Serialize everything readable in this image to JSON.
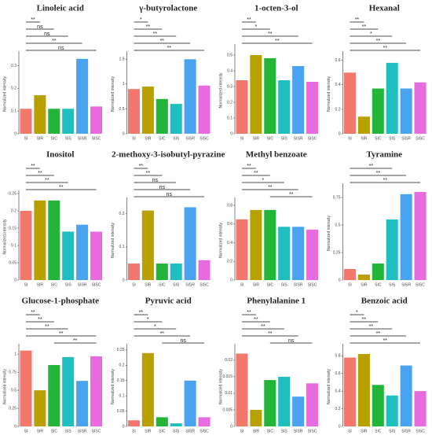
{
  "chart_data": [
    {
      "type": "bar",
      "title": "Linoleic acid",
      "y_label": "Normalized intensity",
      "categories": [
        "SI",
        "SIR",
        "SIC",
        "SIS",
        "SISR",
        "SISC"
      ],
      "values": [
        0.11,
        0.17,
        0.11,
        0.11,
        0.33,
        0.12
      ],
      "colors": [
        "#f4776e",
        "#b8a000",
        "#22b53a",
        "#1fbfbf",
        "#4aa3f0",
        "#e86ce0"
      ],
      "ylim": [
        0,
        0.35
      ],
      "yticks": [
        0,
        0.1,
        0.2,
        0.3
      ],
      "comparisons": [
        {
          "from": "SI",
          "to": "SIR",
          "label": "**"
        },
        {
          "from": "SI",
          "to": "SIC",
          "label": "ns"
        },
        {
          "from": "SI",
          "to": "SIS",
          "label": "ns"
        },
        {
          "from": "SI",
          "to": "SISR",
          "label": "**"
        },
        {
          "from": "SI",
          "to": "SISC",
          "label": "ns"
        }
      ]
    },
    {
      "type": "bar",
      "title": "γ-butyrolactone",
      "y_label": "Normalized intensity",
      "categories": [
        "SI",
        "SIR",
        "SIC",
        "SIS",
        "SISR",
        "SISC"
      ],
      "values": [
        0.9,
        0.95,
        0.7,
        0.6,
        1.5,
        0.97
      ],
      "colors": [
        "#f4776e",
        "#b8a000",
        "#22b53a",
        "#1fbfbf",
        "#4aa3f0",
        "#e86ce0"
      ],
      "ylim": [
        0,
        1.6
      ],
      "yticks": [
        0,
        0.5,
        1,
        1.5
      ],
      "comparisons": [
        {
          "from": "SI",
          "to": "SIR",
          "label": "*"
        },
        {
          "from": "SI",
          "to": "SIC",
          "label": "**"
        },
        {
          "from": "SI",
          "to": "SIS",
          "label": "**"
        },
        {
          "from": "SI",
          "to": "SISR",
          "label": "**"
        },
        {
          "from": "SI",
          "to": "SISC",
          "label": "**"
        }
      ]
    },
    {
      "type": "bar",
      "title": "1-octen-3-ol",
      "y_label": "Normalized intensity",
      "categories": [
        "SI",
        "SIR",
        "SIC",
        "SIS",
        "SISR",
        "SISC"
      ],
      "values": [
        0.34,
        0.5,
        0.48,
        0.34,
        0.43,
        0.33
      ],
      "colors": [
        "#f4776e",
        "#b8a000",
        "#22b53a",
        "#1fbfbf",
        "#4aa3f0",
        "#e86ce0"
      ],
      "ylim": [
        0,
        0.55
      ],
      "yticks": [
        0,
        0.1,
        0.2,
        0.3,
        0.4,
        0.5
      ],
      "comparisons": [
        {
          "from": "SI",
          "to": "SIR",
          "label": "**"
        },
        {
          "from": "SI",
          "to": "SIC",
          "label": "*"
        },
        {
          "from": "SI",
          "to": "SISR",
          "label": "**"
        },
        {
          "from": "SI",
          "to": "SISC",
          "label": "**"
        }
      ]
    },
    {
      "type": "bar",
      "title": "Hexanal",
      "y_label": "Normalized intensity",
      "categories": [
        "SI",
        "SIR",
        "SIC",
        "SIS",
        "SISR",
        "SISC"
      ],
      "values": [
        0.5,
        0.14,
        0.37,
        0.58,
        0.37,
        0.42
      ],
      "colors": [
        "#f4776e",
        "#b8a000",
        "#22b53a",
        "#1fbfbf",
        "#4aa3f0",
        "#e86ce0"
      ],
      "ylim": [
        0,
        0.65
      ],
      "yticks": [
        0,
        0.2,
        0.4,
        0.6
      ],
      "comparisons": [
        {
          "from": "SI",
          "to": "SIR",
          "label": "**"
        },
        {
          "from": "SI",
          "to": "SIC",
          "label": "**"
        },
        {
          "from": "SI",
          "to": "SIS",
          "label": "*"
        },
        {
          "from": "SI",
          "to": "SISR",
          "label": "**"
        },
        {
          "from": "SI",
          "to": "SISC",
          "label": "**"
        }
      ]
    },
    {
      "type": "bar",
      "title": "Inositol",
      "y_label": "Normalized intensity",
      "categories": [
        "SI",
        "SIR",
        "SIC",
        "SIS",
        "SISR",
        "SISC"
      ],
      "values": [
        0.2,
        0.23,
        0.23,
        0.14,
        0.16,
        0.14
      ],
      "colors": [
        "#f4776e",
        "#b8a000",
        "#22b53a",
        "#1fbfbf",
        "#4aa3f0",
        "#e86ce0"
      ],
      "ylim": [
        0,
        0.25
      ],
      "yticks": [
        0,
        0.05,
        0.1,
        0.15,
        0.2,
        0.25
      ],
      "comparisons": [
        {
          "from": "SI",
          "to": "SIR",
          "label": "**"
        },
        {
          "from": "SI",
          "to": "SIC",
          "label": "**"
        },
        {
          "from": "SI",
          "to": "SIS",
          "label": "**"
        },
        {
          "from": "SI",
          "to": "SISC",
          "label": "**"
        }
      ]
    },
    {
      "type": "bar",
      "title": "2-methoxy-3-isobutyl-pyrazine",
      "y_label": "Normalized intensity",
      "categories": [
        "SI",
        "SIR",
        "SIC",
        "SIS",
        "SISR",
        "SISC"
      ],
      "values": [
        0.05,
        0.21,
        0.05,
        0.05,
        0.22,
        0.06
      ],
      "colors": [
        "#f4776e",
        "#b8a000",
        "#22b53a",
        "#1fbfbf",
        "#4aa3f0",
        "#e86ce0"
      ],
      "ylim": [
        0,
        0.24
      ],
      "yticks": [
        0,
        0.1,
        0.2
      ],
      "comparisons": [
        {
          "from": "SI",
          "to": "SIR",
          "label": "**"
        },
        {
          "from": "SI",
          "to": "SIC",
          "label": "**"
        },
        {
          "from": "SI",
          "to": "SIS",
          "label": "ns"
        },
        {
          "from": "SI",
          "to": "SISR",
          "label": "ns"
        },
        {
          "from": "SI",
          "to": "SISC",
          "label": "ns"
        }
      ]
    },
    {
      "type": "bar",
      "title": "Methyl benzoate",
      "y_label": "Normalized intensity",
      "categories": [
        "SI",
        "SIR",
        "SIC",
        "SIS",
        "SISR",
        "SISC"
      ],
      "values": [
        0.65,
        0.75,
        0.75,
        0.57,
        0.57,
        0.54
      ],
      "colors": [
        "#f4776e",
        "#b8a000",
        "#22b53a",
        "#1fbfbf",
        "#4aa3f0",
        "#e86ce0"
      ],
      "ylim": [
        0,
        0.85
      ],
      "yticks": [
        0,
        0.2,
        0.4,
        0.6,
        0.8
      ],
      "comparisons": [
        {
          "from": "SI",
          "to": "SIR",
          "label": "**"
        },
        {
          "from": "SI",
          "to": "SIC",
          "label": "**"
        },
        {
          "from": "SI",
          "to": "SIS",
          "label": "*"
        },
        {
          "from": "SI",
          "to": "SISR",
          "label": "**"
        },
        {
          "from": "SIC",
          "to": "SISC",
          "label": "**"
        }
      ]
    },
    {
      "type": "bar",
      "title": "Tyramine",
      "y_label": "Normalized intensity",
      "categories": [
        "SI",
        "SIR",
        "SIC",
        "SIS",
        "SISR",
        "SISC"
      ],
      "values": [
        0.1,
        0.05,
        0.15,
        0.55,
        0.78,
        0.8
      ],
      "colors": [
        "#f4776e",
        "#b8a000",
        "#22b53a",
        "#1fbfbf",
        "#4aa3f0",
        "#e86ce0"
      ],
      "ylim": [
        0,
        0.85
      ],
      "yticks": [
        0,
        0.25,
        0.5,
        0.75
      ],
      "comparisons": [
        {
          "from": "SI",
          "to": "SIS",
          "label": "**"
        },
        {
          "from": "SI",
          "to": "SISR",
          "label": "**"
        },
        {
          "from": "SI",
          "to": "SISC",
          "label": "**"
        }
      ]
    },
    {
      "type": "bar",
      "title": "Glucose-1-phosphate",
      "y_label": "Normalized intensity",
      "categories": [
        "SI",
        "SIR",
        "SIC",
        "SIS",
        "SISR",
        "SISC"
      ],
      "values": [
        1.05,
        0.5,
        0.85,
        0.96,
        0.63,
        0.97
      ],
      "colors": [
        "#f4776e",
        "#b8a000",
        "#22b53a",
        "#1fbfbf",
        "#4aa3f0",
        "#e86ce0"
      ],
      "ylim": [
        0,
        1.1
      ],
      "yticks": [
        0,
        0.25,
        0.5,
        0.75,
        1
      ],
      "comparisons": [
        {
          "from": "SI",
          "to": "SIR",
          "label": "**"
        },
        {
          "from": "SI",
          "to": "SIC",
          "label": "**"
        },
        {
          "from": "SI",
          "to": "SIS",
          "label": "**"
        },
        {
          "from": "SI",
          "to": "SISC",
          "label": "**"
        },
        {
          "from": "SIC",
          "to": "SISC",
          "label": "**"
        }
      ]
    },
    {
      "type": "bar",
      "title": "Pyruvic acid",
      "y_label": "Normalized intensity",
      "categories": [
        "SI",
        "SIR",
        "SIC",
        "SIS",
        "SISR",
        "SISC"
      ],
      "values": [
        0.02,
        0.24,
        0.03,
        0.01,
        0.15,
        0.03
      ],
      "colors": [
        "#f4776e",
        "#b8a000",
        "#22b53a",
        "#1fbfbf",
        "#4aa3f0",
        "#e86ce0"
      ],
      "ylim": [
        0,
        0.26
      ],
      "yticks": [
        0,
        0.05,
        0.1,
        0.15,
        0.2,
        0.25
      ],
      "comparisons": [
        {
          "from": "SI",
          "to": "SIR",
          "label": "**"
        },
        {
          "from": "SI",
          "to": "SIC",
          "label": "*"
        },
        {
          "from": "SI",
          "to": "SIS",
          "label": "*"
        },
        {
          "from": "SI",
          "to": "SISR",
          "label": "**"
        },
        {
          "from": "SIC",
          "to": "SISC",
          "label": "ns"
        }
      ]
    },
    {
      "type": "bar",
      "title": "Phenylalanine 1",
      "y_label": "Normalized intensity",
      "categories": [
        "SI",
        "SIR",
        "SIC",
        "SIS",
        "SISR",
        "SISC"
      ],
      "values": [
        0.022,
        0.005,
        0.014,
        0.015,
        0.009,
        0.013
      ],
      "colors": [
        "#f4776e",
        "#b8a000",
        "#22b53a",
        "#1fbfbf",
        "#4aa3f0",
        "#e86ce0"
      ],
      "ylim": [
        0,
        0.024
      ],
      "yticks": [
        0,
        0.005,
        0.01,
        0.015,
        0.02
      ],
      "comparisons": [
        {
          "from": "SI",
          "to": "SIR",
          "label": "**"
        },
        {
          "from": "SI",
          "to": "SIC",
          "label": "**"
        },
        {
          "from": "SI",
          "to": "SIS",
          "label": "**"
        },
        {
          "from": "SI",
          "to": "SISR",
          "label": "**"
        },
        {
          "from": "SIC",
          "to": "SISC",
          "label": "ns"
        }
      ]
    },
    {
      "type": "bar",
      "title": "Benzoic acid",
      "y_label": "Normalized intensity",
      "categories": [
        "SI",
        "SIR",
        "SIC",
        "SIS",
        "SISR",
        "SISC"
      ],
      "values": [
        0.78,
        0.82,
        0.47,
        0.35,
        0.69,
        0.4
      ],
      "colors": [
        "#f4776e",
        "#b8a000",
        "#22b53a",
        "#1fbfbf",
        "#4aa3f0",
        "#e86ce0"
      ],
      "ylim": [
        0,
        0.9
      ],
      "yticks": [
        0,
        0.2,
        0.4,
        0.6,
        0.8
      ],
      "comparisons": [
        {
          "from": "SI",
          "to": "SIR",
          "label": "*"
        },
        {
          "from": "SI",
          "to": "SIC",
          "label": "**"
        },
        {
          "from": "SI",
          "to": "SIS",
          "label": "**"
        },
        {
          "from": "SI",
          "to": "SISR",
          "label": "**"
        },
        {
          "from": "SI",
          "to": "SISC",
          "label": "**"
        }
      ]
    }
  ]
}
